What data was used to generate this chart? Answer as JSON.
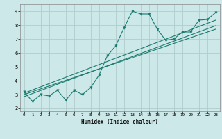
{
  "title": "",
  "xlabel": "Humidex (Indice chaleur)",
  "bg_color": "#cce8e8",
  "line_color": "#1a7a6e",
  "grid_color": "#b0cccc",
  "xlim": [
    -0.5,
    23.5
  ],
  "ylim": [
    1.8,
    9.5
  ],
  "xticks": [
    0,
    1,
    2,
    3,
    4,
    5,
    6,
    7,
    8,
    9,
    10,
    11,
    12,
    13,
    14,
    15,
    16,
    17,
    18,
    19,
    20,
    21,
    22,
    23
  ],
  "yticks": [
    2,
    3,
    4,
    5,
    6,
    7,
    8,
    9
  ],
  "scatter_x": [
    0,
    1,
    2,
    3,
    4,
    5,
    6,
    7,
    8,
    9,
    10,
    11,
    12,
    13,
    14,
    15,
    16,
    17,
    18,
    19,
    20,
    21,
    22,
    23
  ],
  "scatter_y": [
    3.2,
    2.5,
    3.0,
    2.9,
    3.3,
    2.6,
    3.3,
    3.0,
    3.5,
    4.4,
    5.8,
    6.5,
    7.8,
    9.0,
    8.8,
    8.8,
    7.7,
    6.9,
    7.0,
    7.5,
    7.5,
    8.35,
    8.4,
    8.9
  ],
  "line1_x": [
    0,
    23
  ],
  "line1_y": [
    3.0,
    7.7
  ],
  "line2_x": [
    0,
    23
  ],
  "line2_y": [
    2.85,
    7.95
  ],
  "line3_x": [
    0,
    23
  ],
  "line3_y": [
    3.1,
    8.35
  ]
}
